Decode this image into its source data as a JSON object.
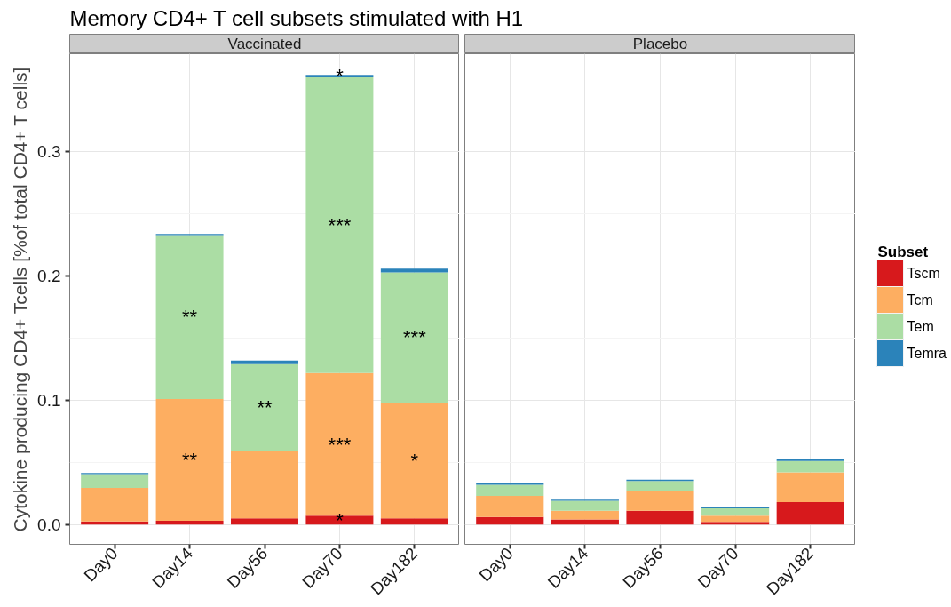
{
  "chart_data": [
    {
      "type": "bar",
      "title": "Memory CD4+ T cell subsets stimulated with H1",
      "subtitle": "Vaccinated",
      "ylabel": "Cytokine producing CD4+ Tcells [%of total CD4+ T cells]",
      "stacked": true,
      "grid": true,
      "categories": [
        "Day0",
        "Day14",
        "Day56",
        "Day70",
        "Day182"
      ],
      "ylim": [
        -0.016,
        0.379
      ],
      "yticks": [
        {
          "value": 0,
          "label": "0.0"
        },
        0.1,
        0.2,
        0.3
      ],
      "series": [
        {
          "color": "#d7191c",
          "values": [
            0.0025,
            0.003,
            0.005,
            0.007,
            0.005
          ],
          "value_labels": [
            null,
            null,
            null,
            "*",
            null
          ]
        },
        {
          "color": "#fdae61",
          "values": [
            0.027,
            0.098,
            0.054,
            0.115,
            0.093
          ],
          "value_labels": [
            null,
            "**",
            null,
            "***",
            "*"
          ]
        },
        {
          "color": "#abdda4",
          "values": [
            0.011,
            0.132,
            0.07,
            0.238,
            0.105
          ],
          "value_labels": [
            null,
            "**",
            "**",
            "***",
            "***"
          ]
        },
        {
          "color": "#2b83ba",
          "values": [
            0.001,
            0.001,
            0.003,
            0.002,
            0.003
          ],
          "value_labels": [
            null,
            null,
            null,
            "*",
            null
          ]
        }
      ]
    },
    {
      "type": "bar",
      "subtitle": "Placebo",
      "stacked": true,
      "grid": true,
      "tick_labels": "x",
      "legend": "right",
      "legend_title": "Subset",
      "categories": [
        "Day0",
        "Day14",
        "Day56",
        "Day70",
        "Day182"
      ],
      "ylim": [
        -0.016,
        0.379
      ],
      "yticks": [
        0,
        0.1,
        0.2,
        0.3
      ],
      "series": [
        {
          "name": "Tscm",
          "color": "#d7191c",
          "values": [
            0.006,
            0.004,
            0.011,
            0.002,
            0.018
          ]
        },
        {
          "name": "Tcm",
          "color": "#fdae61",
          "values": [
            0.017,
            0.007,
            0.016,
            0.005,
            0.024
          ]
        },
        {
          "name": "Tem",
          "color": "#abdda4",
          "values": [
            0.009,
            0.008,
            0.008,
            0.006,
            0.009
          ]
        },
        {
          "name": "Temra",
          "color": "#2b83ba",
          "values": [
            0.001,
            0.001,
            0.001,
            0.001,
            0.0015
          ]
        }
      ]
    }
  ]
}
